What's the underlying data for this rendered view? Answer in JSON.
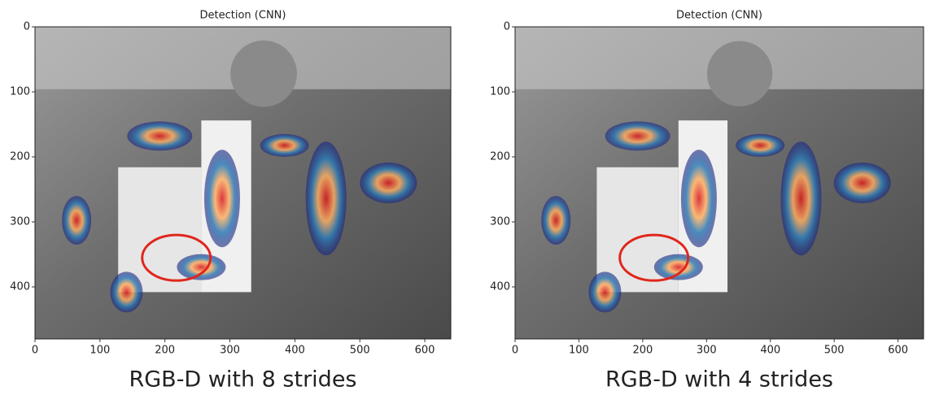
{
  "chart_data": [
    {
      "type": "image",
      "title": "Detection (CNN)",
      "caption": "RGB-D with 8 strides",
      "xlim": [
        0,
        640
      ],
      "ylim": [
        480,
        0
      ],
      "xticks": [
        0,
        100,
        200,
        300,
        400,
        500,
        600
      ],
      "yticks": [
        0,
        100,
        200,
        300,
        400
      ]
    },
    {
      "type": "image",
      "title": "Detection (CNN)",
      "caption": "RGB-D with 4 strides",
      "xlim": [
        0,
        640
      ],
      "ylim": [
        480,
        0
      ],
      "xticks": [
        0,
        100,
        200,
        300,
        400,
        500,
        600
      ],
      "yticks": [
        0,
        100,
        200,
        300,
        400
      ]
    }
  ]
}
